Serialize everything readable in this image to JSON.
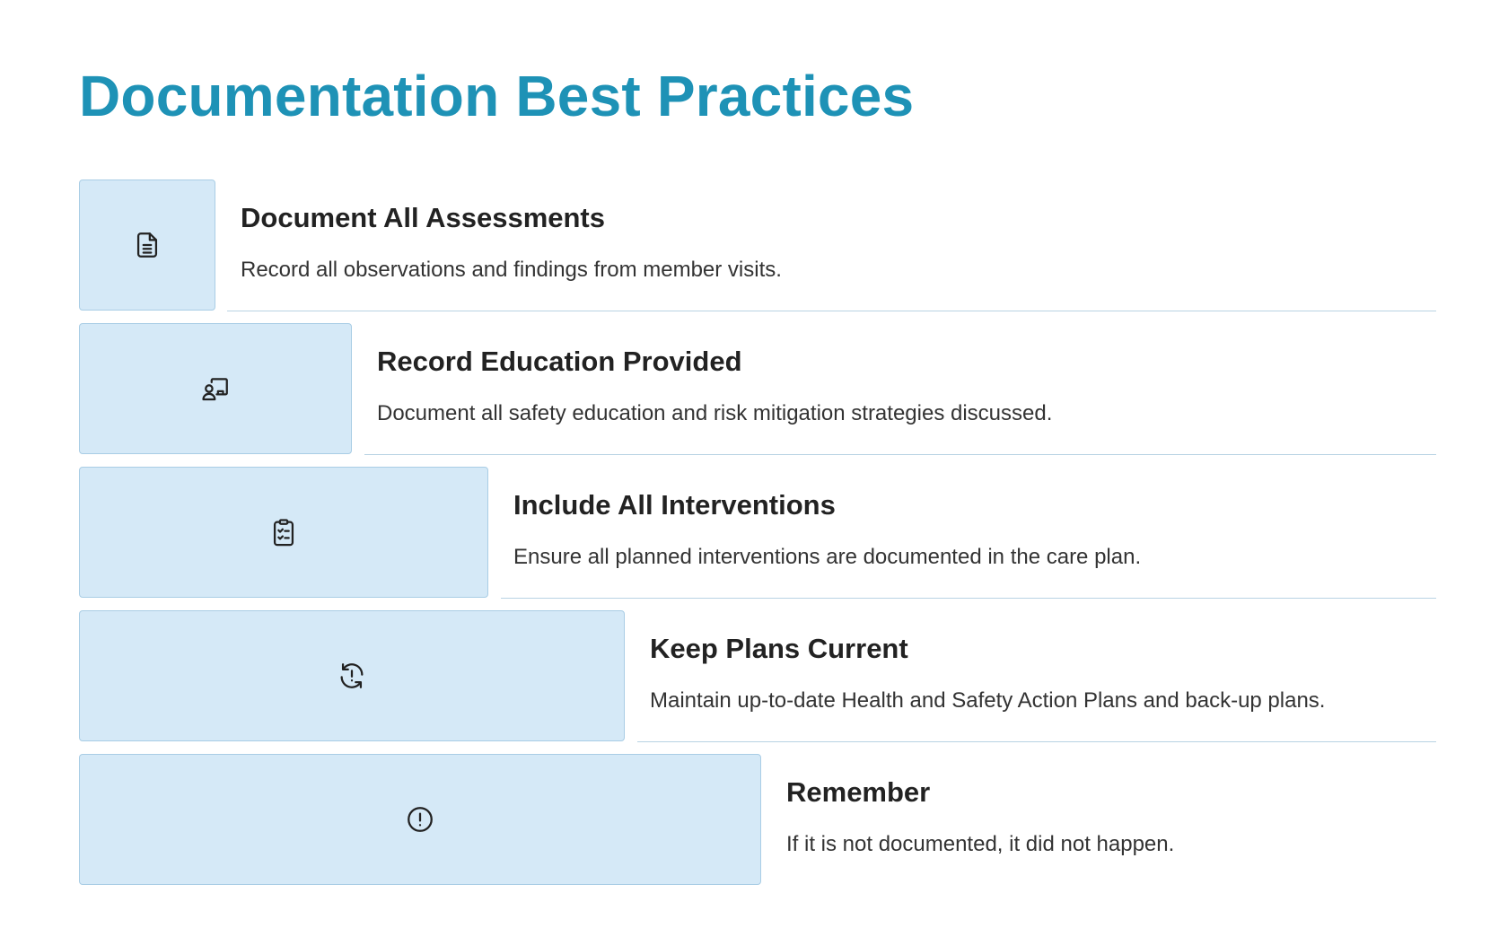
{
  "title": "Documentation Best Practices",
  "steps": [
    {
      "icon": "document-icon",
      "title": "Document All Assessments",
      "description": "Record all observations and findings from member visits."
    },
    {
      "icon": "presentation-user-icon",
      "title": "Record Education Provided",
      "description": "Document all safety education and risk mitigation strategies discussed."
    },
    {
      "icon": "clipboard-checklist-icon",
      "title": "Include All Interventions",
      "description": "Ensure all planned interventions are documented in the care plan."
    },
    {
      "icon": "refresh-alert-icon",
      "title": "Keep Plans Current",
      "description": "Maintain up-to-date Health and Safety Action Plans and back-up plans."
    },
    {
      "icon": "alert-circle-icon",
      "title": "Remember",
      "description": "If it is not documented, it did not happen."
    }
  ],
  "colors": {
    "title": "#1e92b6",
    "icon_box_fill": "#d5e9f7",
    "icon_box_border": "#a9cde5",
    "divider": "#b8d3e3"
  }
}
